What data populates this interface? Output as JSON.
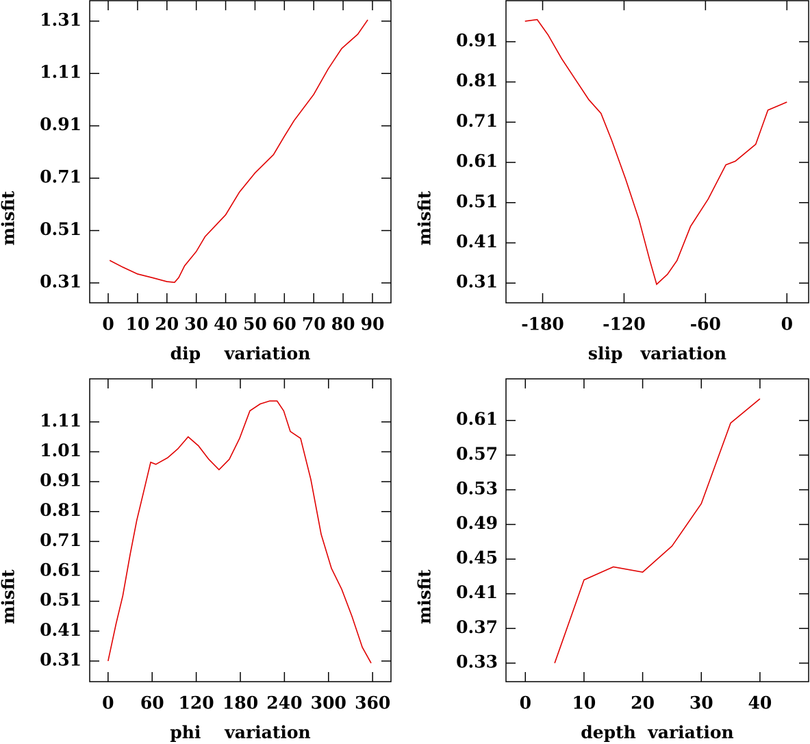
{
  "chart_data": [
    {
      "type": "line",
      "x_label": "dip    variation",
      "y_label": "misfit",
      "xlim": [
        -6.3,
        96.3
      ],
      "xticks": [
        0,
        10,
        20,
        30,
        40,
        50,
        60,
        70,
        80,
        90
      ],
      "ylim": [
        0.234,
        1.388
      ],
      "yticks": [
        0.31,
        0.51,
        0.71,
        0.91,
        1.11,
        1.31
      ],
      "series": [
        {
          "color": "#e00000",
          "x": [
            0.5,
            5,
            10,
            15,
            20,
            22.6,
            24,
            26,
            30,
            33,
            40,
            44.7,
            50,
            56.3,
            60,
            63.3,
            70,
            74.9,
            79.5,
            85,
            88.4
          ],
          "values": [
            0.396,
            0.37,
            0.344,
            0.33,
            0.315,
            0.312,
            0.33,
            0.375,
            0.43,
            0.487,
            0.57,
            0.657,
            0.73,
            0.8,
            0.87,
            0.93,
            1.03,
            1.127,
            1.205,
            1.26,
            1.315
          ]
        }
      ]
    },
    {
      "type": "line",
      "x_label": "slip   variation",
      "y_label": "misfit",
      "xlim": [
        -207,
        16
      ],
      "xticks": [
        -180,
        -120,
        -60,
        0
      ],
      "ylim": [
        0.261,
        1.012
      ],
      "yticks": [
        0.31,
        0.41,
        0.51,
        0.61,
        0.71,
        0.81,
        0.91
      ],
      "series": [
        {
          "color": "#e00000",
          "x": [
            -193,
            -184,
            -176,
            -166,
            -156,
            -146,
            -137,
            -129,
            -119,
            -109,
            -101,
            -96,
            -88,
            -81,
            -71,
            -58,
            -45,
            -38,
            -23,
            -14,
            0
          ],
          "values": [
            0.961,
            0.965,
            0.927,
            0.868,
            0.817,
            0.766,
            0.732,
            0.664,
            0.57,
            0.468,
            0.366,
            0.307,
            0.332,
            0.366,
            0.451,
            0.519,
            0.604,
            0.613,
            0.655,
            0.74,
            0.76
          ]
        }
      ]
    },
    {
      "type": "line",
      "x_label": "phi    variation",
      "y_label": "misfit",
      "xlim": [
        -25,
        385
      ],
      "xticks": [
        0,
        60,
        120,
        180,
        240,
        300,
        360
      ],
      "ylim": [
        0.241,
        1.254
      ],
      "yticks": [
        0.31,
        0.41,
        0.51,
        0.61,
        0.71,
        0.81,
        0.91,
        1.01,
        1.11
      ],
      "series": [
        {
          "color": "#e00000",
          "x": [
            0,
            11,
            20,
            30,
            39,
            48,
            58,
            65,
            81,
            95,
            109,
            123,
            137,
            151,
            165,
            179,
            193,
            207,
            220,
            230,
            239,
            248,
            262,
            276,
            290,
            304,
            318,
            332,
            346,
            358
          ],
          "values": [
            0.31,
            0.436,
            0.528,
            0.666,
            0.78,
            0.872,
            0.975,
            0.968,
            0.99,
            1.02,
            1.06,
            1.03,
            0.985,
            0.95,
            0.985,
            1.055,
            1.147,
            1.17,
            1.18,
            1.18,
            1.147,
            1.078,
            1.055,
            0.917,
            0.734,
            0.62,
            0.55,
            0.459,
            0.356,
            0.303
          ]
        }
      ]
    },
    {
      "type": "line",
      "x_label": "depth  variation",
      "y_label": "misfit",
      "xlim": [
        -3.3,
        48.3
      ],
      "xticks": [
        0,
        10,
        20,
        30,
        40
      ],
      "ylim": [
        0.3086,
        0.658
      ],
      "yticks": [
        0.33,
        0.37,
        0.41,
        0.45,
        0.49,
        0.53,
        0.57,
        0.61
      ],
      "series": [
        {
          "color": "#e00000",
          "x": [
            5,
            10,
            15,
            20,
            25,
            30,
            35,
            40
          ],
          "values": [
            0.33,
            0.426,
            0.441,
            0.435,
            0.465,
            0.514,
            0.607,
            0.635
          ]
        }
      ]
    }
  ]
}
